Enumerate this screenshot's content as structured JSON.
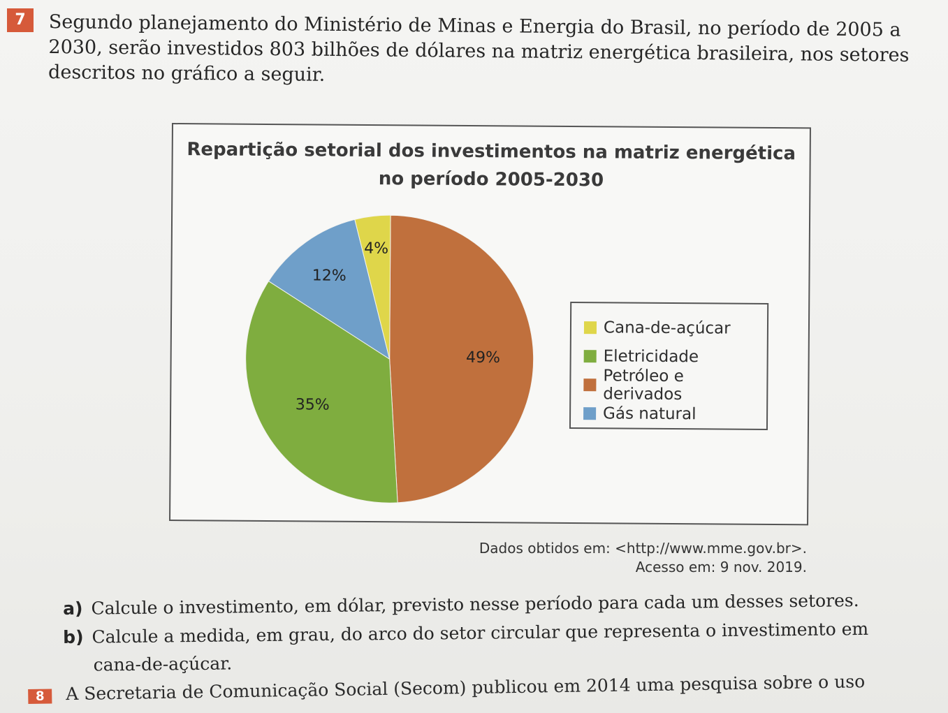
{
  "question": {
    "number": "7",
    "intro": "Segundo planejamento do Ministério de Minas e Energia do Brasil, no período de 2005 a 2030, serão investidos 803 bilhões de dólares na matriz energética brasileira, nos setores descritos no gráfico a seguir."
  },
  "chart_data": {
    "type": "pie",
    "title_line1": "Repartição setorial dos investimentos na matriz energética",
    "title_line2": "no período 2005-2030",
    "slices": [
      {
        "label": "Petróleo e derivados",
        "value": 49,
        "text": "49%",
        "color": "#c0703d"
      },
      {
        "label": "Eletricidade",
        "value": 35,
        "text": "35%",
        "color": "#7fad3f"
      },
      {
        "label": "Gás natural",
        "value": 12,
        "text": "12%",
        "color": "#6f9fc9"
      },
      {
        "label": "Cana-de-açúcar",
        "value": 4,
        "text": "4%",
        "color": "#dfd64a"
      }
    ],
    "legend": [
      {
        "label": "Cana-de-açúcar",
        "color": "#dfd64a"
      },
      {
        "label": "Eletricidade",
        "color": "#7fad3f"
      },
      {
        "label": "Petróleo e derivados",
        "color": "#c0703d"
      },
      {
        "label": "Gás natural",
        "color": "#6f9fc9"
      }
    ],
    "legend_position": "right"
  },
  "source": {
    "line1": "Dados obtidos em: <http://www.mme.gov.br>.",
    "line2": "Acesso em: 9 nov. 2019."
  },
  "items": {
    "a_label": "a)",
    "a_text": "Calcule o investimento, em dólar, previsto nesse período para cada um desses setores.",
    "b_label": "b)",
    "b_text1": "Calcule a medida, em grau, do arco do setor circular que representa o investimento em",
    "b_text2": "cana-de-açúcar."
  },
  "next_question": {
    "number": "8",
    "text": "A Secretaria de Comunicação Social (Secom) publicou em 2014 uma pesquisa sobre o uso"
  }
}
